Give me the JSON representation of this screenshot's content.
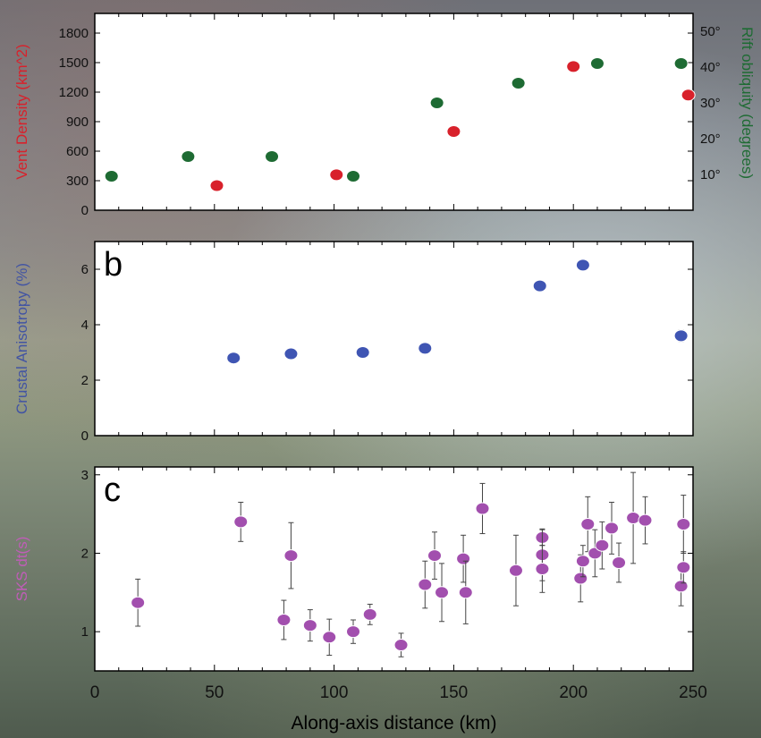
{
  "chart_data": [
    {
      "panel": "a",
      "type": "scatter",
      "xlim": [
        0,
        250
      ],
      "ylabel": "Vent Density (km^2)",
      "ylabel_color": "#d8212b",
      "ylim": [
        0,
        2000
      ],
      "yticks": [
        0,
        300,
        600,
        900,
        1200,
        1500,
        1800
      ],
      "y2label": "Rift obliquity (degrees)",
      "y2label_color": "#1e6b33",
      "y2lim": [
        0,
        55
      ],
      "y2ticks": [
        10,
        20,
        30,
        40,
        50
      ],
      "y2tick_labels": [
        "10°",
        "20°",
        "30°",
        "40°",
        "50°"
      ],
      "series": [
        {
          "axis": "left",
          "color": "#d8212b",
          "x": [
            51,
            101,
            150,
            200,
            248
          ],
          "y": [
            250,
            360,
            800,
            1460,
            1170
          ]
        },
        {
          "axis": "right",
          "color": "#1e6b33",
          "x": [
            7,
            39,
            74,
            108,
            143,
            177,
            210,
            245
          ],
          "y": [
            9.5,
            15,
            15,
            9.5,
            30,
            35.5,
            41,
            41
          ]
        }
      ]
    },
    {
      "panel": "b",
      "panel_label": "b",
      "type": "scatter",
      "xlim": [
        0,
        250
      ],
      "ylabel": "Crustal Anisotropy (%)",
      "ylabel_color": "#4254a3",
      "ylim": [
        0,
        7
      ],
      "yticks": [
        0,
        2,
        4,
        6
      ],
      "series": [
        {
          "color": "#3f55b3",
          "x": [
            58,
            82,
            112,
            138,
            186,
            204,
            245
          ],
          "y": [
            2.8,
            2.95,
            3.0,
            3.15,
            5.4,
            6.15,
            3.6
          ],
          "err": [
            0.12,
            0.12,
            0.14,
            0.14,
            0.13,
            0.15,
            0.2
          ]
        }
      ]
    },
    {
      "panel": "c",
      "panel_label": "c",
      "type": "scatter",
      "xlim": [
        0,
        250
      ],
      "xticks": [
        0,
        50,
        100,
        150,
        200,
        250
      ],
      "xlabel": "Along-axis distance (km)",
      "ylabel": "SKS dt(s)",
      "ylabel_color": "#c05db8",
      "ylim": [
        0.5,
        3.1
      ],
      "yticks": [
        1,
        2,
        3
      ],
      "series": [
        {
          "color": "#a24fae",
          "x": [
            18,
            61,
            79,
            82,
            90,
            98,
            108,
            115,
            128,
            138,
            142,
            145,
            154,
            155,
            162,
            176,
            187,
            187,
            187,
            203,
            204,
            206,
            209,
            212,
            216,
            219,
            225,
            230,
            245,
            246,
            246
          ],
          "y": [
            1.37,
            2.4,
            1.15,
            1.97,
            1.08,
            0.93,
            1.0,
            1.22,
            0.83,
            1.6,
            1.97,
            1.5,
            1.93,
            1.5,
            2.57,
            1.78,
            2.2,
            1.98,
            1.8,
            1.68,
            1.9,
            2.37,
            2.0,
            2.1,
            2.32,
            1.88,
            2.45,
            2.42,
            1.58,
            1.82,
            2.37
          ],
          "err": [
            0.3,
            0.25,
            0.25,
            0.42,
            0.2,
            0.23,
            0.15,
            0.13,
            0.15,
            0.3,
            0.3,
            0.37,
            0.3,
            0.4,
            0.32,
            0.45,
            0.1,
            0.33,
            0.3,
            0.3,
            0.2,
            0.35,
            0.3,
            0.3,
            0.33,
            0.25,
            0.58,
            0.3,
            0.25,
            0.2,
            0.37
          ]
        }
      ]
    }
  ]
}
